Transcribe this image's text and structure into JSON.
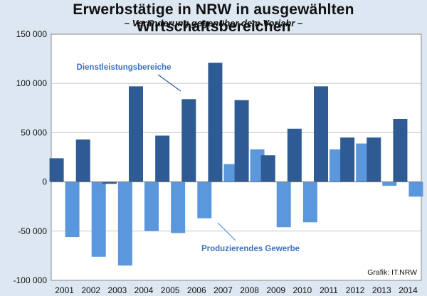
{
  "title": "Erwerbstätige  in NRW in ausgewählten Wirtschaftsbereichen",
  "subtitle": "– Veränderung gegenüber dem Vorjahr –",
  "source": "Grafik: IT.NRW",
  "colors": {
    "background": "#dce7f1",
    "plot_background": "#ffffff",
    "dienstleistung": "#2e5b94",
    "produzierend": "#5b97dc",
    "label_text": "#3a73bf",
    "grid": "#c9c9c9"
  },
  "chart_data": {
    "type": "bar",
    "title": "Erwerbstätige  in NRW in ausgewählten Wirtschaftsbereichen",
    "subtitle": "– Veränderung gegenüber dem Vorjahr –",
    "xlabel": "",
    "ylabel": "",
    "ylim": [
      -100000,
      150000
    ],
    "yticks": [
      -100000,
      -50000,
      0,
      50000,
      100000,
      150000
    ],
    "ytick_labels": [
      "-100 000",
      "-50 000",
      "0",
      "50 000",
      "100 000",
      "150 000"
    ],
    "grid": true,
    "categories": [
      "2001",
      "2002",
      "2003",
      "2004",
      "2005",
      "2006",
      "2007",
      "2008",
      "2009",
      "2010",
      "2011",
      "2012",
      "2013",
      "2014"
    ],
    "series": [
      {
        "name": "Dienstleistungsbereiche",
        "values": [
          24000,
          43000,
          -2000,
          97000,
          47000,
          84000,
          121000,
          83000,
          27000,
          54000,
          97000,
          45000,
          45000,
          64000
        ]
      },
      {
        "name": "Produzierendes Gewerbe",
        "values": [
          -56000,
          -76000,
          -85000,
          -50000,
          -52000,
          -37000,
          18000,
          33000,
          -46000,
          -41000,
          33000,
          39000,
          -4000,
          -15000
        ]
      }
    ]
  }
}
